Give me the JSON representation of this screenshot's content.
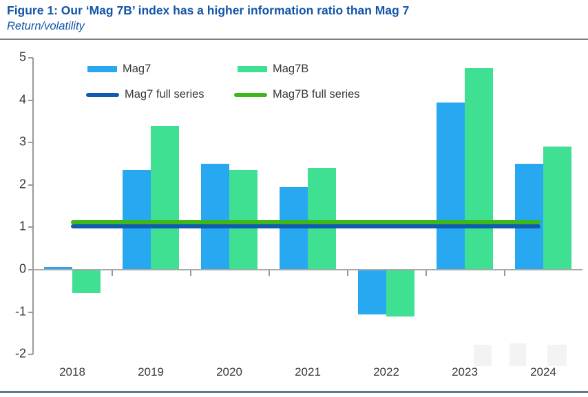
{
  "header": {
    "title": "Figure 1: Our ‘Mag 7B’ index has a higher information ratio than Mag 7",
    "subtitle": "Return/volatility"
  },
  "chart_data": {
    "type": "bar",
    "title": "Figure 1: Our ‘Mag 7B’ index has a higher information ratio than Mag 7",
    "subtitle": "Return/volatility",
    "categories": [
      "2018",
      "2019",
      "2020",
      "2021",
      "2022",
      "2023",
      "2024"
    ],
    "series": [
      {
        "name": "Mag7",
        "color": "#29A8F2",
        "values": [
          0.07,
          2.35,
          2.5,
          1.95,
          -1.05,
          3.95,
          2.5
        ]
      },
      {
        "name": "Mag7B",
        "color": "#3FE092",
        "values": [
          -0.55,
          3.4,
          2.35,
          2.4,
          -1.1,
          4.75,
          2.9
        ]
      }
    ],
    "reference_lines": [
      {
        "name": "Mag7 full series",
        "color": "#0F5CB0",
        "value": 1.02
      },
      {
        "name": "Mag7B full series",
        "color": "#3DB71A",
        "value": 1.12
      }
    ],
    "xlabel": "",
    "ylabel": "",
    "ylim": [
      -2,
      5
    ],
    "yticks": [
      5,
      4,
      3,
      2,
      1,
      0,
      -1,
      -2
    ],
    "grid": false,
    "legend_position": "top-left-inside",
    "colors": {
      "title_blue": "#1355A8",
      "axis_gray": "#999999",
      "zero_line_gray": "#a8a8a8",
      "top_rule_gray": "#7f7f7f",
      "bottom_rule_slate": "#5C7A8A",
      "tick_text": "#3a3a3a"
    }
  }
}
